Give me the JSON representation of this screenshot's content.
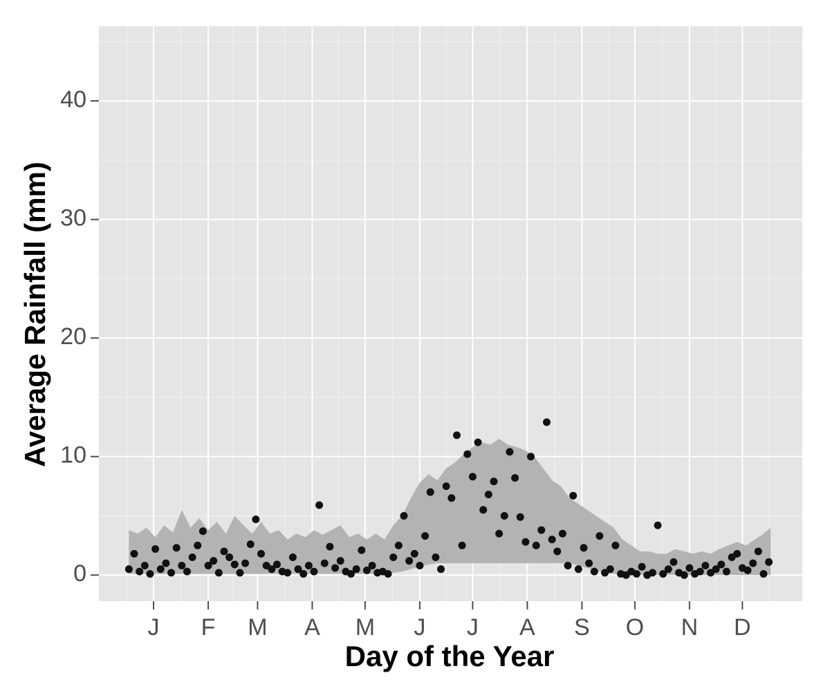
{
  "chart_data": {
    "type": "scatter",
    "x_label": "Day of the Year",
    "y_label": "Average Rainfall (mm)",
    "xlim": [
      -16,
      383
    ],
    "ylim": [
      -2.2,
      46.3
    ],
    "xticks": [
      {
        "value": 15,
        "label": "J"
      },
      {
        "value": 46,
        "label": "F"
      },
      {
        "value": 74,
        "label": "M"
      },
      {
        "value": 105,
        "label": "A"
      },
      {
        "value": 135,
        "label": "M"
      },
      {
        "value": 166,
        "label": "J"
      },
      {
        "value": 196,
        "label": "J"
      },
      {
        "value": 227,
        "label": "A"
      },
      {
        "value": 258,
        "label": "S"
      },
      {
        "value": 288,
        "label": "O"
      },
      {
        "value": 319,
        "label": "N"
      },
      {
        "value": 349,
        "label": "D"
      }
    ],
    "yticks": [
      0,
      10,
      20,
      30,
      40
    ],
    "x_minor_ticks": [
      0,
      30.5,
      60,
      89.5,
      120,
      150.5,
      181,
      211.5,
      242.5,
      273,
      303.5,
      334,
      364
    ],
    "y_minor_ticks": [
      5,
      15,
      25,
      35,
      45
    ],
    "grid": true,
    "point_color": "#111111",
    "ribbon_color": "#b3b3b3",
    "ribbon": {
      "x": [
        1,
        6,
        11,
        16,
        21,
        26,
        31,
        36,
        41,
        46,
        51,
        56,
        61,
        66,
        71,
        76,
        81,
        86,
        91,
        96,
        101,
        106,
        111,
        116,
        121,
        126,
        131,
        136,
        141,
        146,
        151,
        156,
        161,
        166,
        171,
        176,
        181,
        186,
        191,
        196,
        201,
        206,
        211,
        216,
        221,
        226,
        231,
        236,
        241,
        246,
        251,
        256,
        261,
        266,
        271,
        276,
        281,
        286,
        291,
        296,
        301,
        306,
        311,
        316,
        321,
        326,
        331,
        336,
        341,
        346,
        351,
        356,
        361,
        365
      ],
      "upper": [
        3.8,
        3.5,
        4.0,
        3.2,
        4.2,
        3.6,
        5.5,
        4.0,
        4.8,
        3.8,
        4.5,
        3.5,
        5.0,
        4.2,
        3.5,
        4.5,
        3.5,
        3.8,
        3.0,
        3.5,
        3.2,
        3.8,
        3.4,
        3.8,
        4.2,
        3.2,
        3.5,
        3.0,
        3.5,
        3.0,
        4.2,
        5.0,
        6.5,
        7.8,
        8.5,
        8.0,
        9.0,
        9.5,
        10.2,
        10.8,
        11.2,
        11.0,
        11.5,
        11.0,
        10.8,
        10.5,
        10.0,
        9.0,
        8.0,
        7.5,
        6.5,
        6.0,
        5.5,
        5.0,
        4.5,
        4.0,
        3.0,
        2.5,
        2.0,
        2.0,
        1.8,
        1.8,
        2.2,
        2.0,
        1.8,
        2.0,
        1.8,
        2.2,
        2.5,
        2.8,
        2.5,
        3.0,
        3.5,
        4.0
      ],
      "lower": [
        0.1,
        0.1,
        0.1,
        0.1,
        0.1,
        0.1,
        0.1,
        0.1,
        0.1,
        0.1,
        0.1,
        0.1,
        0.1,
        0.1,
        0.1,
        0.1,
        0.1,
        0.1,
        0.1,
        0.1,
        0.1,
        0.1,
        0.1,
        0.1,
        0.1,
        0.1,
        0.1,
        0.1,
        0.1,
        0.1,
        0.2,
        0.3,
        0.5,
        0.7,
        0.9,
        1.0,
        1.0,
        1.0,
        1.0,
        1.0,
        1.0,
        1.0,
        1.0,
        1.0,
        1.0,
        1.0,
        1.0,
        1.0,
        1.0,
        1.0,
        1.0,
        0.8,
        0.6,
        0.4,
        0.2,
        0.1,
        0,
        0,
        0,
        0,
        0,
        0,
        0,
        0,
        0,
        0,
        0,
        0,
        0,
        0,
        0,
        0,
        0,
        0
      ]
    },
    "points": {
      "x": [
        1,
        4,
        7,
        10,
        13,
        16,
        19,
        22,
        25,
        28,
        31,
        34,
        37,
        40,
        43,
        46,
        49,
        52,
        55,
        58,
        61,
        64,
        67,
        70,
        73,
        76,
        79,
        82,
        85,
        88,
        91,
        94,
        97,
        100,
        103,
        106,
        109,
        112,
        115,
        118,
        121,
        124,
        127,
        130,
        133,
        136,
        139,
        142,
        145,
        148,
        151,
        154,
        157,
        160,
        163,
        166,
        169,
        172,
        175,
        178,
        181,
        184,
        187,
        190,
        193,
        196,
        199,
        202,
        205,
        208,
        211,
        214,
        217,
        220,
        223,
        226,
        229,
        232,
        235,
        238,
        241,
        244,
        247,
        250,
        253,
        256,
        259,
        262,
        265,
        268,
        271,
        274,
        277,
        280,
        283,
        286,
        289,
        292,
        295,
        298,
        301,
        304,
        307,
        310,
        313,
        316,
        319,
        322,
        325,
        328,
        331,
        334,
        337,
        340,
        343,
        346,
        349,
        352,
        355,
        358,
        361,
        364
      ],
      "values": [
        0.5,
        1.8,
        0.3,
        0.8,
        0.1,
        2.2,
        0.5,
        1.0,
        0.2,
        2.3,
        0.8,
        0.3,
        1.5,
        2.5,
        3.7,
        0.8,
        1.2,
        0.2,
        2.0,
        1.5,
        0.9,
        0.2,
        1.0,
        2.6,
        4.7,
        1.8,
        0.8,
        0.5,
        0.9,
        0.3,
        0.2,
        1.5,
        0.5,
        0.1,
        0.8,
        0.3,
        5.9,
        1.0,
        2.4,
        0.6,
        1.2,
        0.3,
        0.1,
        0.5,
        2.1,
        0.4,
        0.8,
        0.2,
        0.3,
        0.1,
        1.5,
        2.5,
        5.0,
        1.2,
        1.8,
        0.8,
        3.3,
        7.0,
        1.5,
        0.5,
        7.5,
        6.5,
        11.8,
        2.5,
        10.2,
        8.3,
        11.2,
        5.5,
        6.8,
        7.9,
        3.5,
        5.0,
        10.4,
        8.2,
        4.9,
        2.8,
        10.0,
        2.5,
        3.8,
        12.9,
        3.0,
        2.0,
        3.5,
        0.8,
        6.7,
        0.5,
        2.3,
        1.0,
        0.3,
        3.3,
        0.2,
        0.5,
        2.5,
        0.1,
        0.0,
        0.3,
        0.1,
        0.7,
        0.0,
        0.2,
        4.2,
        0.1,
        0.5,
        1.1,
        0.2,
        0.0,
        0.6,
        0.1,
        0.3,
        0.8,
        0.2,
        0.5,
        0.9,
        0.3,
        1.5,
        1.8,
        0.6,
        0.4,
        1.0,
        2.0,
        0.1,
        1.1
      ]
    }
  }
}
